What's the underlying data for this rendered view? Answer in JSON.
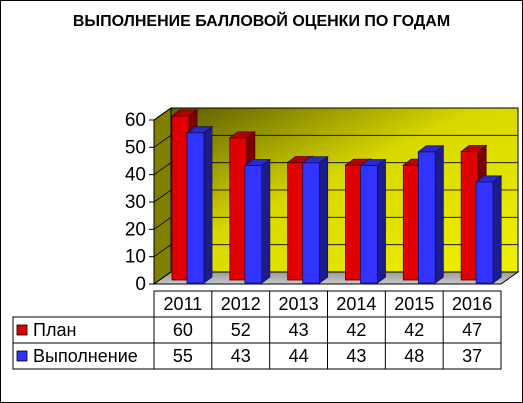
{
  "chart_data": {
    "type": "bar",
    "title": "ВЫПОЛНЕНИЕ БАЛЛОВОЙ ОЦЕНКИ ПО ГОДАМ",
    "categories": [
      "2011",
      "2012",
      "2013",
      "2014",
      "2015",
      "2016"
    ],
    "series": [
      {
        "name": "План",
        "values": [
          60,
          52,
          43,
          42,
          42,
          47
        ],
        "color": "#e00000"
      },
      {
        "name": "Выполнение",
        "values": [
          55,
          43,
          44,
          43,
          48,
          37
        ],
        "color": "#3333ff"
      }
    ],
    "ylim": [
      0,
      60
    ],
    "yticks": [
      "0",
      "10",
      "20",
      "30",
      "40",
      "50",
      "60"
    ],
    "grid": true,
    "legend": "data-table",
    "wall_color": "#c8c800",
    "floor_color": "#a8a8a8"
  }
}
